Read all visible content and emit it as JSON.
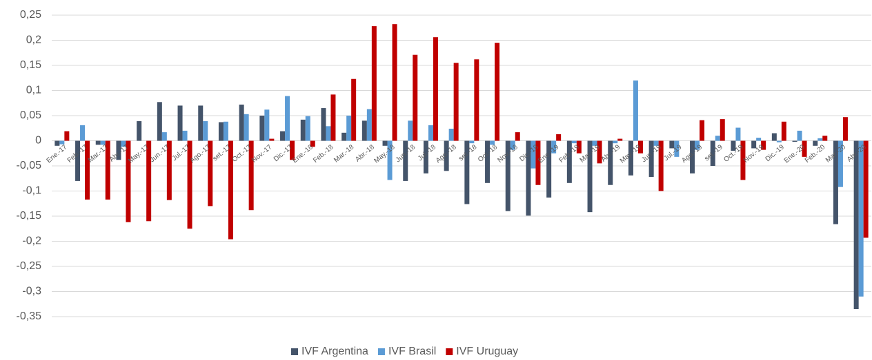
{
  "chart_data": {
    "type": "bar",
    "categories": [
      "Ene.-17",
      "Feb.-17",
      "Mar.-17",
      "Abr.-17",
      "May.-17",
      "Jun.-17",
      "Jul.-17",
      "Ago.-17",
      "set.-17",
      "Oct.-17",
      "Nov.-17",
      "Dic.-17",
      "Ene.-18",
      "Feb.-18",
      "Mar.-18",
      "Abr.-18",
      "May.-18",
      "Jun.-18",
      "Jul.-18",
      "Ago.-18",
      "set.-18",
      "Oct.-18",
      "Nov.-18",
      "Dic.-18",
      "Ene.-19",
      "Feb.-19",
      "Mar.-19",
      "Abr.-19",
      "May.-19",
      "Jun.-19",
      "Jul.-19",
      "Ago.-19",
      "set.-19",
      "Oct.-19",
      "Nov.-19",
      "Dic.-19",
      "Ene.-20",
      "Feb.-20",
      "Mar.-20",
      "Abr.-20"
    ],
    "series": [
      {
        "name": "IVF Argentina",
        "color": "#44546a",
        "values": [
          -0.01,
          -0.08,
          -0.008,
          -0.038,
          0.039,
          0.077,
          0.07,
          0.07,
          0.037,
          0.072,
          0.05,
          0.019,
          0.042,
          0.065,
          0.016,
          0.04,
          -0.01,
          -0.08,
          -0.065,
          -0.06,
          -0.126,
          -0.084,
          -0.14,
          -0.149,
          -0.113,
          -0.084,
          -0.142,
          -0.088,
          -0.069,
          -0.072,
          -0.015,
          -0.065,
          -0.05,
          -0.02,
          -0.015,
          0.015,
          -0.002,
          -0.01,
          -0.166,
          -0.335
        ]
      },
      {
        "name": "IVF Brasil",
        "color": "#5b9bd5",
        "values": [
          -0.007,
          0.031,
          -0.008,
          -0.012,
          0,
          0.017,
          0.02,
          0.039,
          0.038,
          0.053,
          0.062,
          0.089,
          0.049,
          0.029,
          0.05,
          0.063,
          -0.078,
          0.04,
          0.031,
          0.024,
          -0.005,
          -0.008,
          -0.018,
          -0.055,
          -0.025,
          -0.005,
          -0.01,
          -0.005,
          0.12,
          -0.01,
          -0.032,
          -0.018,
          0.01,
          0.026,
          0.006,
          -0.003,
          0.02,
          0.005,
          -0.092,
          -0.31
        ]
      },
      {
        "name": "IVF Uruguay",
        "color": "#c00000",
        "values": [
          0.019,
          -0.117,
          -0.117,
          -0.162,
          -0.16,
          -0.118,
          -0.175,
          -0.13,
          -0.196,
          -0.138,
          0.004,
          -0.038,
          -0.012,
          0.092,
          0.123,
          0.228,
          0.232,
          0.171,
          0.206,
          0.155,
          0.162,
          0.195,
          0.017,
          -0.088,
          0.013,
          -0.025,
          -0.045,
          0.004,
          -0.025,
          -0.1,
          0,
          0.041,
          0.043,
          -0.078,
          -0.018,
          0.038,
          -0.032,
          0.01,
          0.047,
          -0.193
        ]
      }
    ],
    "ylim": [
      -0.35,
      0.25
    ],
    "yticks": [
      {
        "value": 0.25,
        "label": "0,25"
      },
      {
        "value": 0.2,
        "label": "0,2"
      },
      {
        "value": 0.15,
        "label": "0,15"
      },
      {
        "value": 0.1,
        "label": "0,1"
      },
      {
        "value": 0.05,
        "label": "0,05"
      },
      0,
      {
        "value": -0.05,
        "label": "-0,05"
      },
      {
        "value": -0.1,
        "label": "-0,1"
      },
      {
        "value": -0.15,
        "label": "-0,15"
      },
      {
        "value": -0.2,
        "label": "-0,2"
      },
      {
        "value": -0.25,
        "label": "-0,25"
      },
      {
        "value": -0.3,
        "label": "-0,3"
      },
      {
        "value": -0.35,
        "label": "-0,35"
      }
    ],
    "grid": true,
    "legend": "bottom"
  }
}
